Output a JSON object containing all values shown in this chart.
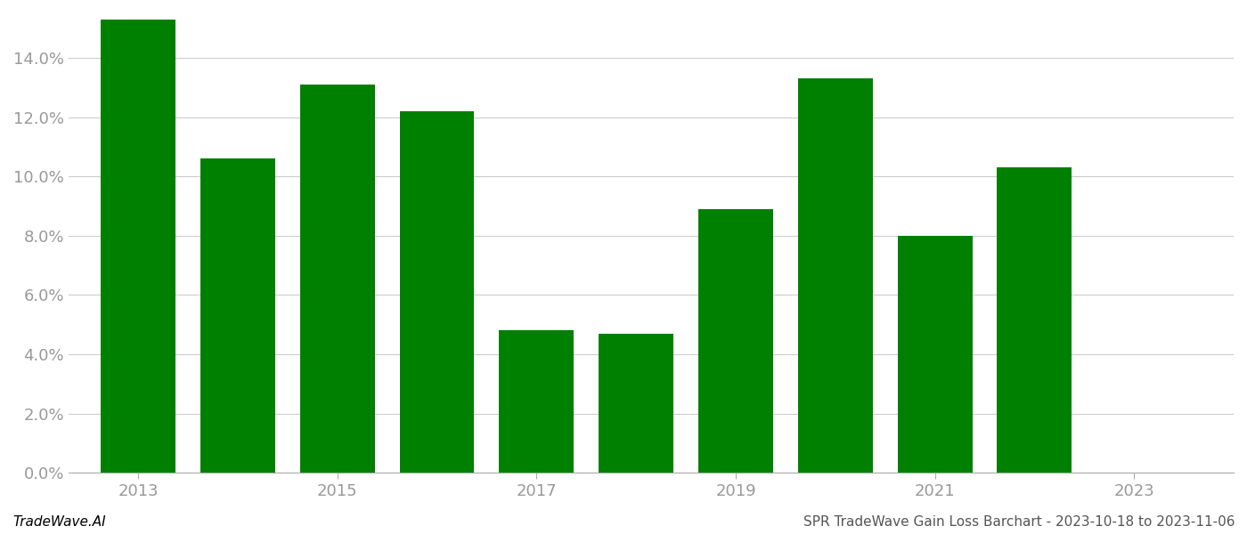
{
  "years": [
    2013,
    2014,
    2015,
    2016,
    2017,
    2018,
    2019,
    2020,
    2021,
    2022,
    2023
  ],
  "values": [
    0.153,
    0.106,
    0.131,
    0.122,
    0.048,
    0.047,
    0.089,
    0.133,
    0.08,
    0.103,
    0.0
  ],
  "bar_color": "#008000",
  "background_color": "#ffffff",
  "ylim": [
    0,
    0.155
  ],
  "yticks": [
    0.0,
    0.02,
    0.04,
    0.06,
    0.08,
    0.1,
    0.12,
    0.14
  ],
  "grid_color": "#cccccc",
  "tick_color": "#999999",
  "footer_left": "TradeWave.AI",
  "footer_right": "SPR TradeWave Gain Loss Barchart - 2023-10-18 to 2023-11-06",
  "footer_fontsize": 11,
  "axis_label_fontsize": 13,
  "figsize": [
    14.0,
    6.0
  ],
  "dpi": 100,
  "xlim": [
    2012.3,
    2024.0
  ],
  "bar_width": 0.75,
  "xticks": [
    2013,
    2015,
    2017,
    2019,
    2021,
    2023
  ]
}
